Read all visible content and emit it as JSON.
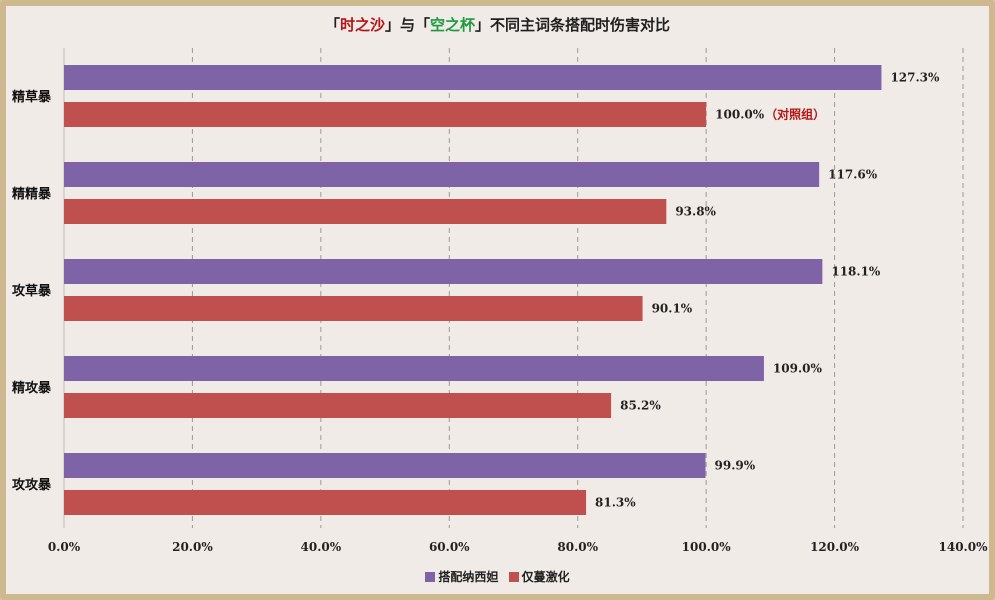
{
  "title": {
    "bracket_open_1": "「",
    "part1": "时之沙",
    "bracket_close_1": "」",
    "connector": "与",
    "bracket_open_2": "「",
    "part2": "空之杯",
    "bracket_close_2": "」",
    "rest": "不同主词条搭配时伤害对比"
  },
  "colors": {
    "series1": "#7e63a6",
    "series2": "#c0504d",
    "control_note": "#b31414",
    "title_red": "#b31414",
    "title_green": "#1c9a3e"
  },
  "chart_data": {
    "type": "bar",
    "orientation": "horizontal",
    "categories": [
      "精草暴",
      "精精暴",
      "攻草暴",
      "精攻暴",
      "攻攻暴"
    ],
    "series": [
      {
        "name": "搭配纳西妲",
        "values": [
          127.3,
          117.6,
          118.1,
          109.0,
          99.9
        ]
      },
      {
        "name": "仅蔓激化",
        "values": [
          100.0,
          93.8,
          90.1,
          85.2,
          81.3
        ]
      }
    ],
    "value_labels": {
      "series1": [
        "127.3%",
        "117.6%",
        "118.1%",
        "109.0%",
        "99.9%"
      ],
      "series2": [
        "100.0%",
        "93.8%",
        "90.1%",
        "85.2%",
        "81.3%"
      ]
    },
    "annotation": {
      "category_index": 0,
      "series_index": 1,
      "text": "（对照组）"
    },
    "x_ticks": [
      0,
      20,
      40,
      60,
      80,
      100,
      120,
      140
    ],
    "x_tick_labels": [
      "0.0%",
      "20.0%",
      "40.0%",
      "60.0%",
      "80.0%",
      "100.0%",
      "120.0%",
      "140.0%"
    ],
    "xlim": [
      0,
      140
    ],
    "grid": "vertical dashed",
    "legend_position": "bottom",
    "xlabel": "",
    "ylabel": ""
  }
}
